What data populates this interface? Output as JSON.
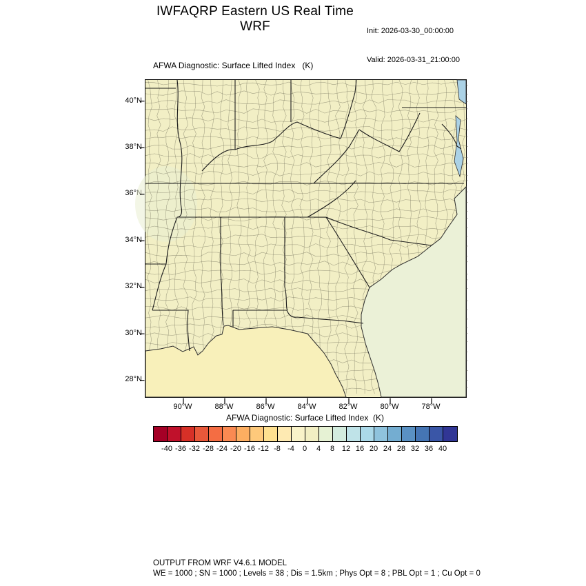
{
  "header": {
    "title": "IWFAQRP Eastern US Real Time WRF",
    "init": "Init: 2026-03-30_00:00:00",
    "valid": "Valid: 2026-03-31_21:00:00"
  },
  "map": {
    "field_label": "AFWA Diagnostic: Surface Lifted Index   (K)",
    "lat_ticks": [
      "40°N",
      "38°N",
      "36°N",
      "34°N",
      "32°N",
      "30°N",
      "28°N"
    ],
    "lon_ticks": [
      "90°W",
      "88°W",
      "86°W",
      "84°W",
      "82°W",
      "80°W",
      "78°W"
    ],
    "colors": {
      "land": "#f2efc5",
      "gulf": "#f8f0ba",
      "ocean": "#ebf1d7",
      "bay": "#abd2e6"
    }
  },
  "colorbar": {
    "title": "AFWA Diagnostic: Surface Lifted Index  (K)",
    "units": "K",
    "tick_labels": [
      "-40",
      "-36",
      "-32",
      "-28",
      "-24",
      "-20",
      "-16",
      "-12",
      "-8",
      "-4",
      "0",
      "4",
      "8",
      "12",
      "16",
      "20",
      "24",
      "28",
      "32",
      "36",
      "40"
    ],
    "colors": [
      "#a50026",
      "#c0112b",
      "#d73027",
      "#e8583a",
      "#f46d43",
      "#fa8a52",
      "#fdae61",
      "#fec97b",
      "#fee090",
      "#feeab2",
      "#f9f3c9",
      "#f2efc3",
      "#e6f2d4",
      "#d3ecde",
      "#bfe3e8",
      "#abd9e9",
      "#8fc3dd",
      "#74add1",
      "#5a91c3",
      "#4575b4",
      "#3a56a7",
      "#313695"
    ]
  },
  "footer": {
    "line1": "OUTPUT FROM WRF V4.6.1 MODEL",
    "line2": "WE = 1000 ; SN = 1000 ; Levels = 38 ; Dis = 1.5km ; Phys Opt = 8 ; PBL Opt = 1 ; Cu Opt = 0"
  },
  "chart_data": {
    "type": "heatmap",
    "title": "AFWA Diagnostic: Surface Lifted Index (K)",
    "units": "K",
    "scale_levels": [
      -44,
      -40,
      -36,
      -32,
      -28,
      -24,
      -20,
      -16,
      -12,
      -8,
      -4,
      0,
      4,
      8,
      12,
      16,
      20,
      24,
      28,
      32,
      36,
      40,
      44
    ],
    "lat_range": [
      "28N",
      "40N"
    ],
    "lon_range": [
      "90W",
      "78W"
    ],
    "field_reading": "Land values mostly 0 to 4 K (pale yellow); Atlantic waters ~4 to 8 K (pale green); Chesapeake/coastal bay waters ~12 to 20 K (light blue)"
  }
}
